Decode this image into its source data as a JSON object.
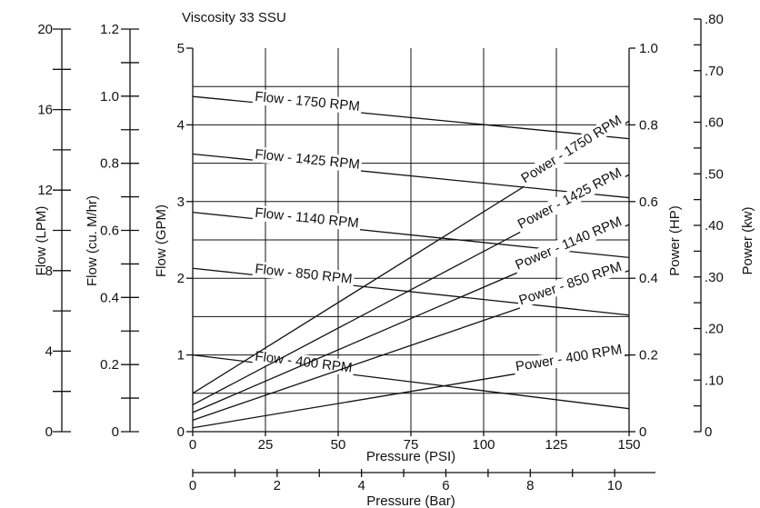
{
  "chart_data": {
    "type": "line",
    "title": "Viscosity 33 SSU",
    "xlabel": "Pressure (PSI)",
    "x2label": "Pressure (Bar)",
    "ylabel": "Flow (GPM)",
    "y2label": "Power (HP)",
    "xlim": [
      0,
      150
    ],
    "ylim": [
      0,
      5
    ],
    "y2lim": [
      0,
      1.0
    ],
    "x_ticks": [
      "0",
      "25",
      "50",
      "75",
      "100",
      "125",
      "150"
    ],
    "x2_ticks": [
      "0",
      "2",
      "4",
      "6",
      "8",
      "10"
    ],
    "y_ticks": [
      "0",
      "1",
      "2",
      "3",
      "4",
      "5"
    ],
    "y2_ticks": [
      "0",
      "0.2",
      "0.4",
      "0.6",
      "0.8",
      "1.0"
    ],
    "grid": true,
    "extra_axes": {
      "lpm": {
        "label": "Flow (LPM)",
        "ticks": [
          "0",
          "4",
          "8",
          "12",
          "16",
          "20"
        ]
      },
      "cumhr": {
        "label": "Flow (cu. M/hr)",
        "ticks": [
          "0",
          "0.2",
          "0.4",
          "0.6",
          "0.8",
          "1.0",
          "1.2"
        ]
      },
      "kw": {
        "label": "Power (kw)",
        "ticks": [
          "0",
          ".10",
          ".20",
          ".30",
          ".40",
          ".50",
          ".60",
          ".70",
          ".80"
        ]
      }
    },
    "series": [
      {
        "name": "Flow - 1750 RPM",
        "axis": "left",
        "x": [
          0,
          150
        ],
        "y": [
          4.37,
          3.82
        ]
      },
      {
        "name": "Flow - 1425 RPM",
        "axis": "left",
        "x": [
          0,
          150
        ],
        "y": [
          3.62,
          3.05
        ]
      },
      {
        "name": "Flow - 1140 RPM",
        "axis": "left",
        "x": [
          0,
          150
        ],
        "y": [
          2.86,
          2.27
        ]
      },
      {
        "name": "Flow - 850 RPM",
        "axis": "left",
        "x": [
          0,
          150
        ],
        "y": [
          2.13,
          1.52
        ]
      },
      {
        "name": "Flow - 400 RPM",
        "axis": "left",
        "x": [
          0,
          150
        ],
        "y": [
          1.0,
          0.3
        ]
      },
      {
        "name": "Power - 1750 RPM",
        "axis": "right",
        "x": [
          0,
          150
        ],
        "y": [
          0.1,
          0.81
        ]
      },
      {
        "name": "Power - 1425 RPM",
        "axis": "right",
        "x": [
          0,
          150
        ],
        "y": [
          0.07,
          0.67
        ]
      },
      {
        "name": "Power - 1140 RPM",
        "axis": "right",
        "x": [
          0,
          150
        ],
        "y": [
          0.05,
          0.54
        ]
      },
      {
        "name": "Power - 850 RPM",
        "axis": "right",
        "x": [
          0,
          150
        ],
        "y": [
          0.03,
          0.42
        ]
      },
      {
        "name": "Power - 400 RPM",
        "axis": "right",
        "x": [
          0,
          150
        ],
        "y": [
          0.01,
          0.2
        ]
      }
    ]
  }
}
